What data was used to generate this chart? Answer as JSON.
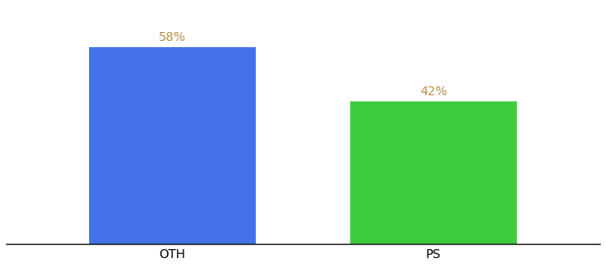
{
  "categories": [
    "OTH",
    "PS"
  ],
  "values": [
    58,
    42
  ],
  "bar_colors": [
    "#4472e8",
    "#3dcc3d"
  ],
  "label_texts": [
    "58%",
    "42%"
  ],
  "label_color": "#b8914a",
  "ylim": [
    0,
    70
  ],
  "background_color": "#ffffff",
  "bar_width": 0.28,
  "x_positions": [
    0.28,
    0.72
  ],
  "label_fontsize": 10,
  "tick_fontsize": 10
}
